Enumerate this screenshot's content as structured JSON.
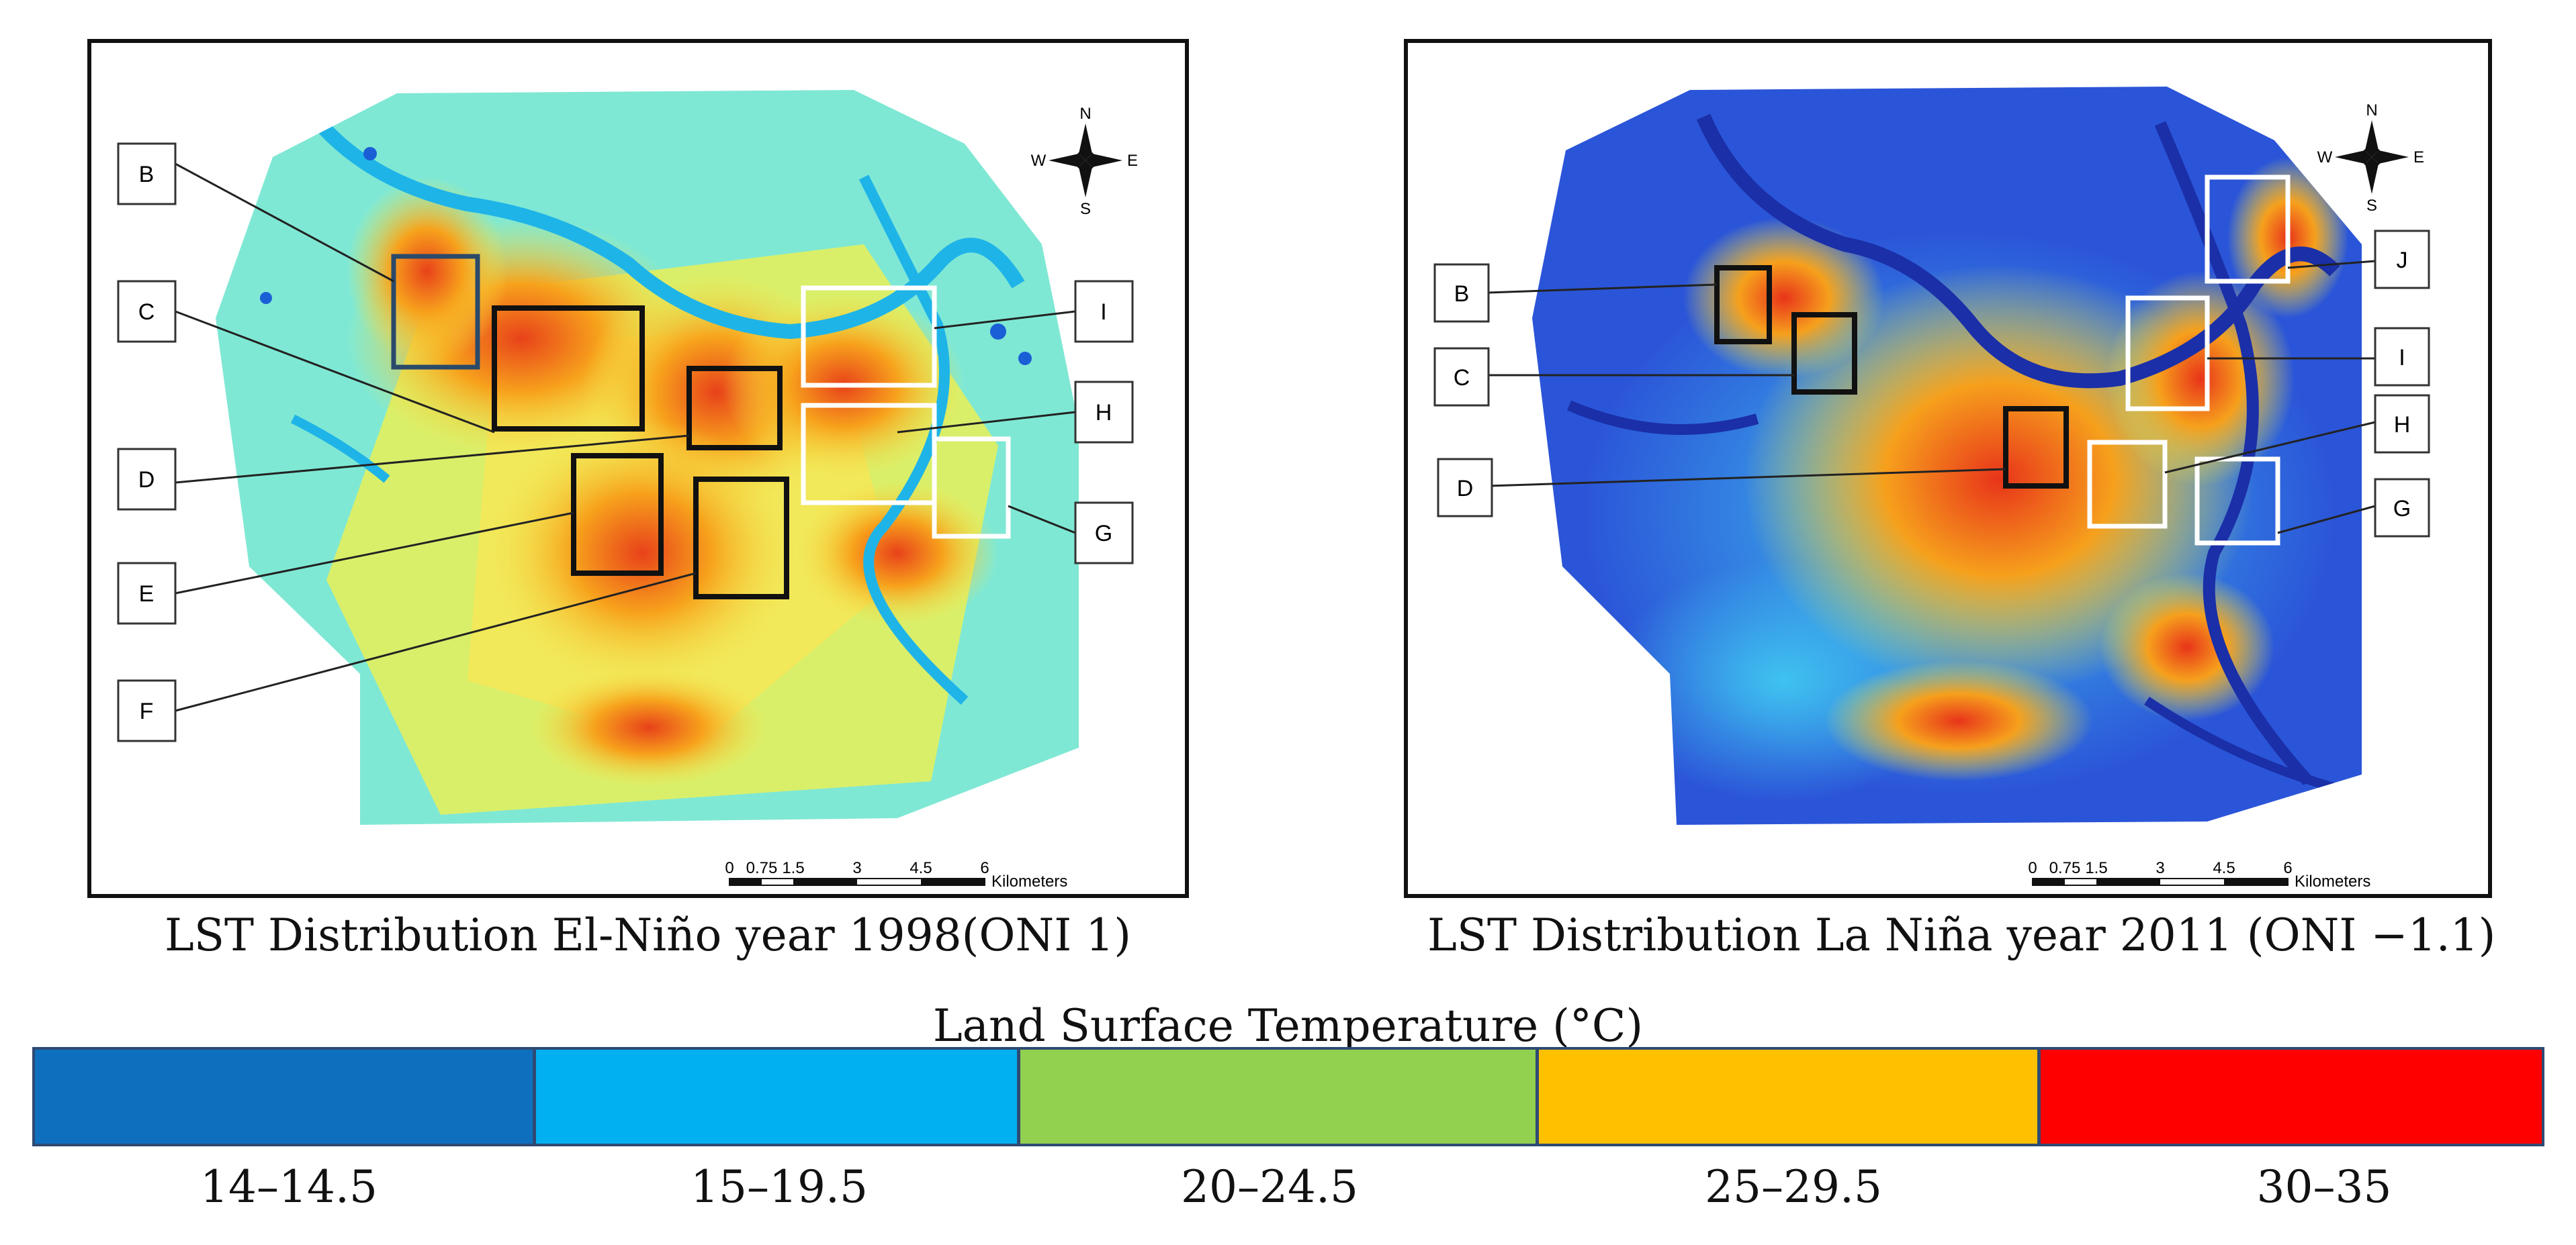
{
  "panels": [
    {
      "caption": "LST Distribution El-Niño year 1998(ONI 1)",
      "labels": [
        "B",
        "C",
        "D",
        "E",
        "F",
        "I",
        "H",
        "G"
      ]
    },
    {
      "caption": "LST Distribution La Niña year 2011 (ONI −1.1)",
      "labels": [
        "B",
        "C",
        "D",
        "J",
        "I",
        "H",
        "G"
      ]
    }
  ],
  "compass": {
    "n": "N",
    "s": "S",
    "e": "E",
    "w": "W"
  },
  "scale_bar": {
    "ticks": [
      "0",
      "0.75",
      "1.5",
      "3",
      "4.5",
      "6"
    ],
    "unit": "Kilometers"
  },
  "legend": {
    "title": "Land Surface Temperature (°C)",
    "classes": [
      {
        "label": "14–14.5",
        "color": "#0f6fbf"
      },
      {
        "label": "15–19.5",
        "color": "#00b0f0"
      },
      {
        "label": "20–24.5",
        "color": "#92d050"
      },
      {
        "label": "25–29.5",
        "color": "#ffc000"
      },
      {
        "label": "30–35",
        "color": "#ff0000"
      }
    ]
  }
}
